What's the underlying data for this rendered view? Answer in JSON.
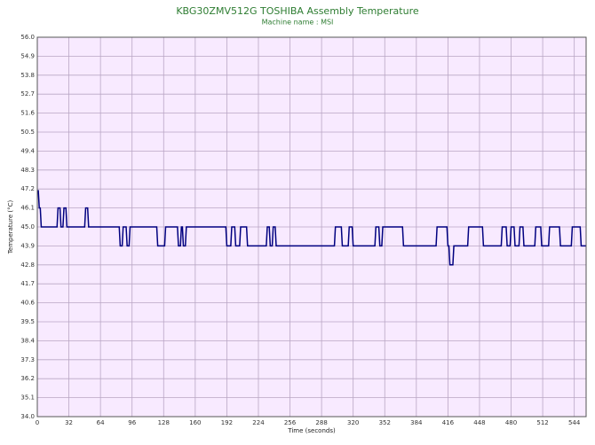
{
  "chart_data": {
    "type": "line",
    "title": "KBG30ZMV512G TOSHIBA Assembly Temperature",
    "subtitle": "Machine name : MSI",
    "x_label": "Time (seconds)",
    "y_label": "Temperature (°C)",
    "color": "#000080",
    "background": "#f8eaff",
    "grid": true,
    "x": [
      0,
      1,
      2,
      3,
      4,
      20,
      21,
      23,
      24,
      26,
      27,
      29,
      30,
      48,
      49,
      51,
      52,
      83,
      84,
      86,
      87,
      90,
      91,
      93,
      94,
      121,
      122,
      129,
      130,
      142,
      143,
      145,
      146,
      147,
      148,
      150,
      151,
      191,
      192,
      196,
      197,
      200,
      201,
      205,
      206,
      212,
      213,
      232,
      233,
      235,
      236,
      238,
      239,
      241,
      242,
      301,
      302,
      308,
      309,
      315,
      316,
      319,
      320,
      342,
      343,
      346,
      347,
      349,
      350,
      370,
      371,
      404,
      405,
      415,
      416,
      417,
      418,
      421,
      422,
      436,
      437,
      451,
      452,
      470,
      471,
      475,
      476,
      479,
      480,
      483,
      484,
      488,
      489,
      492,
      493,
      504,
      505,
      510,
      511,
      518,
      519,
      529,
      530,
      541,
      542,
      550,
      551,
      556
    ],
    "values": [
      47.1,
      47.1,
      46.1,
      46.1,
      45,
      45,
      46.1,
      46.1,
      45,
      45,
      46.1,
      46.1,
      45,
      45,
      46.1,
      46.1,
      45,
      45,
      43.9,
      43.9,
      45,
      45,
      43.9,
      43.9,
      45,
      45,
      43.9,
      43.9,
      45,
      45,
      43.9,
      43.9,
      45,
      45,
      43.9,
      43.9,
      45,
      45,
      43.9,
      43.9,
      45,
      45,
      43.9,
      43.9,
      45,
      45,
      43.9,
      43.9,
      45,
      45,
      43.9,
      43.9,
      45,
      45,
      43.9,
      43.9,
      45,
      45,
      43.9,
      43.9,
      45,
      45,
      43.9,
      43.9,
      45,
      45,
      43.9,
      43.9,
      45,
      45,
      43.9,
      43.9,
      45,
      45,
      43.9,
      43.9,
      42.8,
      42.8,
      43.9,
      43.9,
      45,
      45,
      43.9,
      43.9,
      45,
      45,
      43.9,
      43.9,
      45,
      45,
      43.9,
      43.9,
      45,
      45,
      43.9,
      43.9,
      45,
      45,
      43.9,
      43.9,
      45,
      45,
      43.9,
      43.9,
      45,
      45,
      43.9,
      43.9
    ],
    "xlim": [
      0,
      556
    ],
    "xticks": [
      0,
      32,
      64,
      96,
      128,
      160,
      192,
      224,
      256,
      288,
      320,
      352,
      384,
      416,
      448,
      480,
      512,
      544
    ],
    "ylim": [
      34,
      56
    ],
    "yticks": [
      {
        "value": 56,
        "label": "56.0"
      },
      54.9,
      53.8,
      52.7,
      51.6,
      50.5,
      49.4,
      48.3,
      47.2,
      46.1,
      {
        "value": 45,
        "label": "45.0"
      },
      43.9,
      42.8,
      41.7,
      40.6,
      39.5,
      38.4,
      37.3,
      36.2,
      35.1,
      {
        "value": 34,
        "label": "34.0"
      }
    ]
  }
}
